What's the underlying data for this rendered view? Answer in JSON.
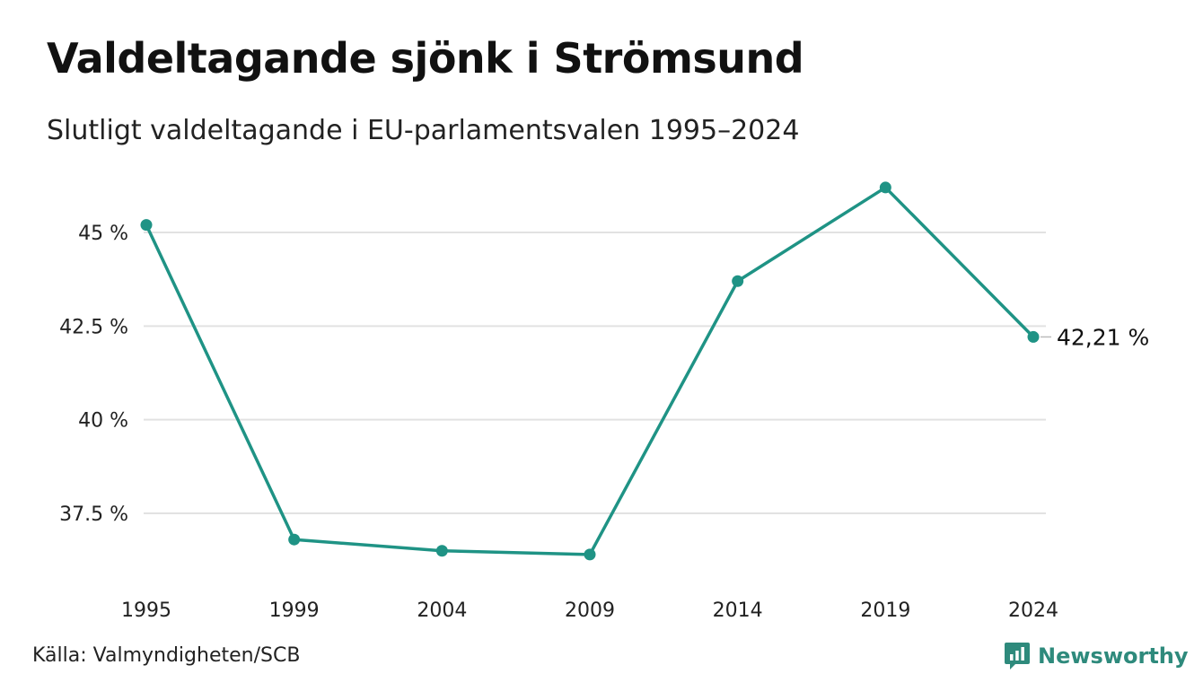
{
  "title": "Valdeltagande sjönk i Strömsund",
  "subtitle": "Slutligt valdeltagande i EU-parlamentsvalen 1995–2024",
  "source": "Källa: Valmyndigheten/SCB",
  "brand": {
    "name": "Newsworthy",
    "icon": "newsworthy-logo-icon",
    "color": "#2e8a7c"
  },
  "chart_data": {
    "type": "line",
    "title": "Valdeltagande sjönk i Strömsund",
    "subtitle": "Slutligt valdeltagande i EU-parlamentsvalen 1995–2024",
    "categories": [
      "1995",
      "1999",
      "2004",
      "2009",
      "2014",
      "2019",
      "2024"
    ],
    "series": [
      {
        "values": [
          45.2,
          36.8,
          36.5,
          36.4,
          43.7,
          46.2,
          42.21
        ],
        "color": "#1f9385"
      }
    ],
    "y_ticks": [
      37.5,
      40,
      42.5,
      45
    ],
    "y_tick_labels": [
      "37.5 %",
      "40 %",
      "42.5 %",
      "45 %"
    ],
    "ylim": [
      36,
      46.4
    ],
    "grid": true,
    "end_label": "42,21 %",
    "xlabel": "",
    "ylabel": ""
  }
}
